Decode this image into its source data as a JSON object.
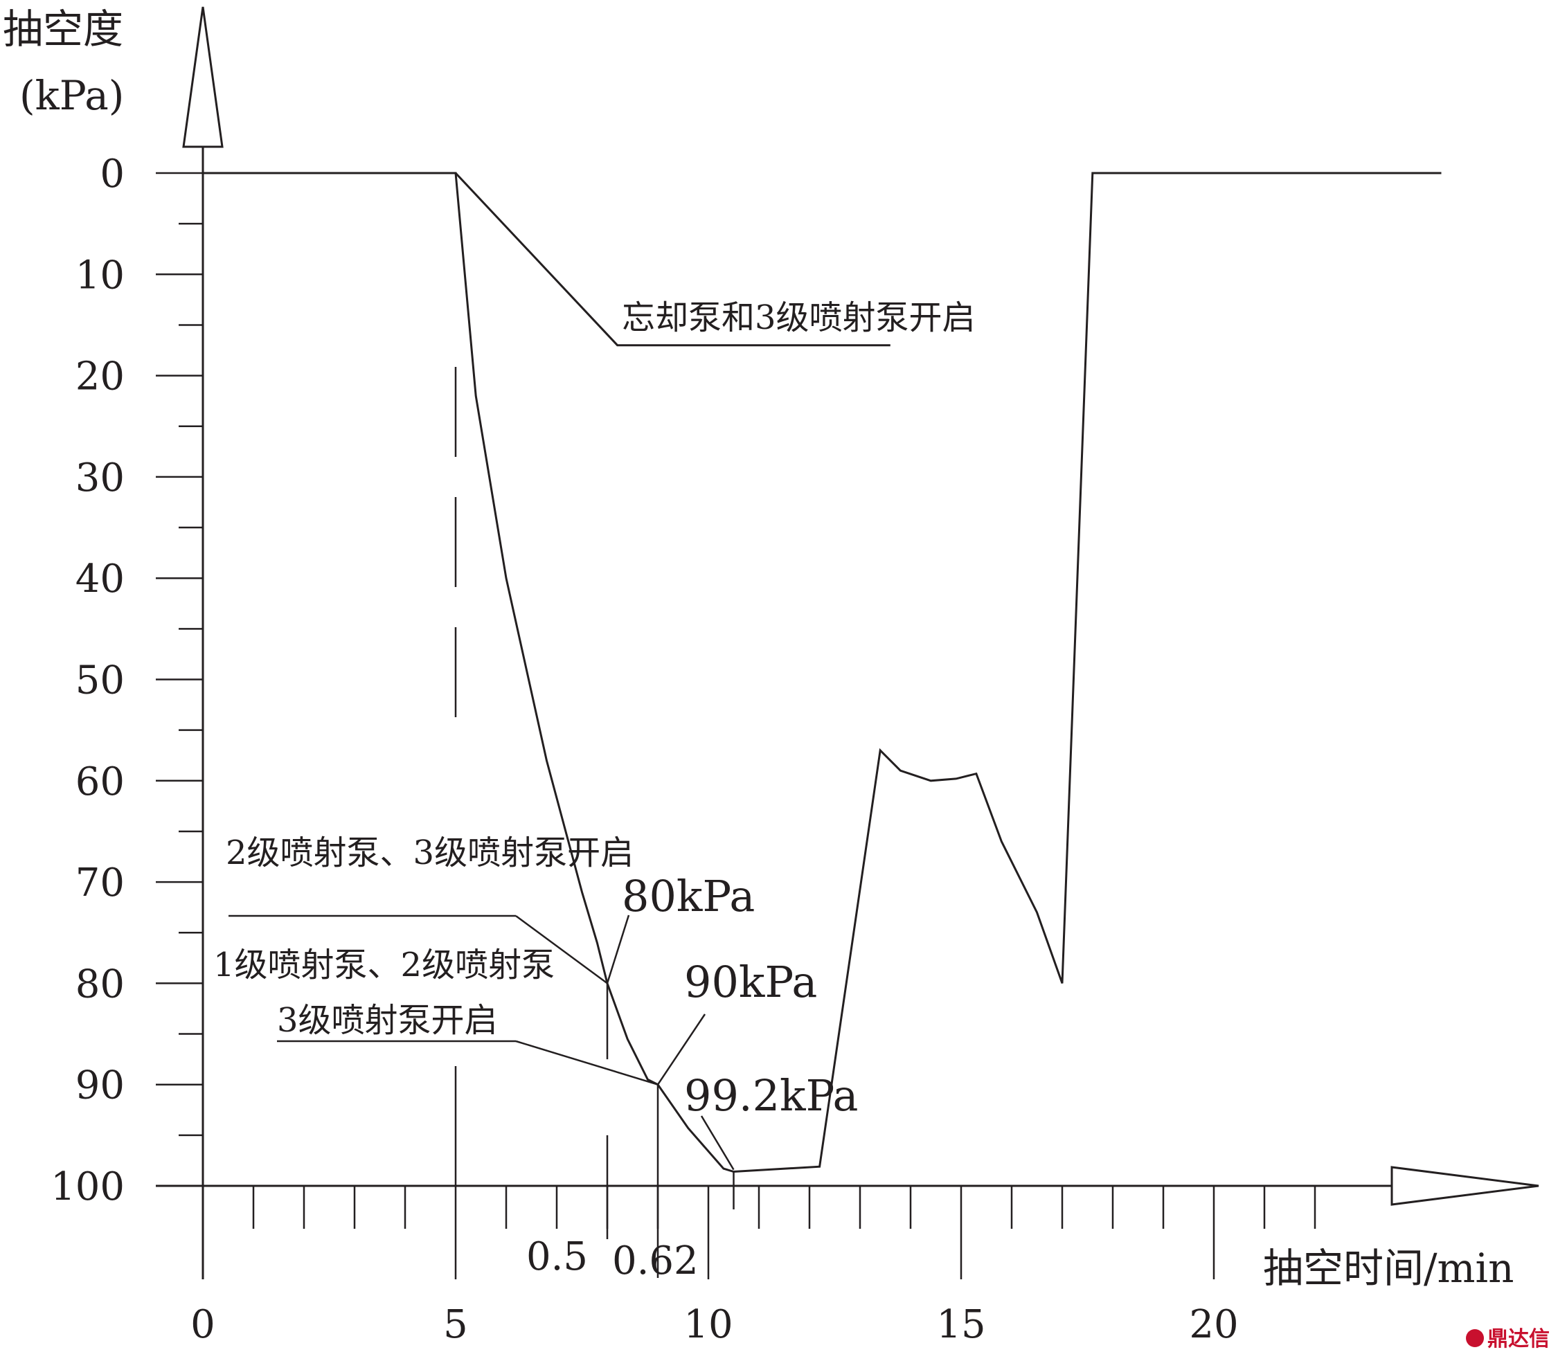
{
  "chart_data": {
    "type": "line",
    "ylabel_line1": "抽空度",
    "ylabel_line2": "(kPa)",
    "xlabel": "抽空时间/min",
    "ylim": [
      0,
      100
    ],
    "xlim": [
      0,
      24
    ],
    "y_ticks": [
      "0",
      "10",
      "20",
      "30",
      "40",
      "50",
      "60",
      "70",
      "80",
      "90",
      "100"
    ],
    "x_ticks": [
      "0",
      "5",
      "10",
      "15",
      "20"
    ],
    "extra_x_labels": [
      "0.5",
      "0.62"
    ],
    "series": [
      {
        "points": [
          [
            0,
            0
          ],
          [
            5,
            0
          ],
          [
            8.2,
            17
          ],
          [
            13.6,
            17
          ]
        ]
      },
      {
        "points": [
          [
            0,
            0
          ],
          [
            5,
            0
          ],
          [
            5.4,
            22
          ],
          [
            6,
            40
          ],
          [
            6.8,
            58
          ],
          [
            7.5,
            71
          ],
          [
            7.8,
            76
          ],
          [
            8,
            80
          ],
          [
            8.4,
            85.5
          ],
          [
            8.8,
            89.5
          ],
          [
            9,
            90
          ],
          [
            9.6,
            94.3
          ],
          [
            10.3,
            98.3
          ],
          [
            10.5,
            98.6
          ],
          [
            12.2,
            98.1
          ],
          [
            13.4,
            57
          ],
          [
            13.8,
            59
          ],
          [
            14.4,
            60
          ],
          [
            14.9,
            59.8
          ],
          [
            15.3,
            59.3
          ],
          [
            15.8,
            66
          ],
          [
            16.5,
            73
          ],
          [
            17,
            80
          ],
          [
            17.6,
            0
          ],
          [
            24.5,
            0
          ]
        ]
      }
    ],
    "annotations": [
      {
        "text": "忘却泵和3级喷射泵开启"
      },
      {
        "text": "2级喷射泵、3级喷射泵开启"
      },
      {
        "text": "1级喷射泵、2级喷射泵"
      },
      {
        "text": "3级喷射泵开启"
      },
      {
        "text": "80kPa"
      },
      {
        "text": "90kPa"
      },
      {
        "text": "99.2kPa"
      }
    ],
    "grid": false
  },
  "watermark": {
    "text": "鼎达信",
    "color": "#c8102e"
  }
}
